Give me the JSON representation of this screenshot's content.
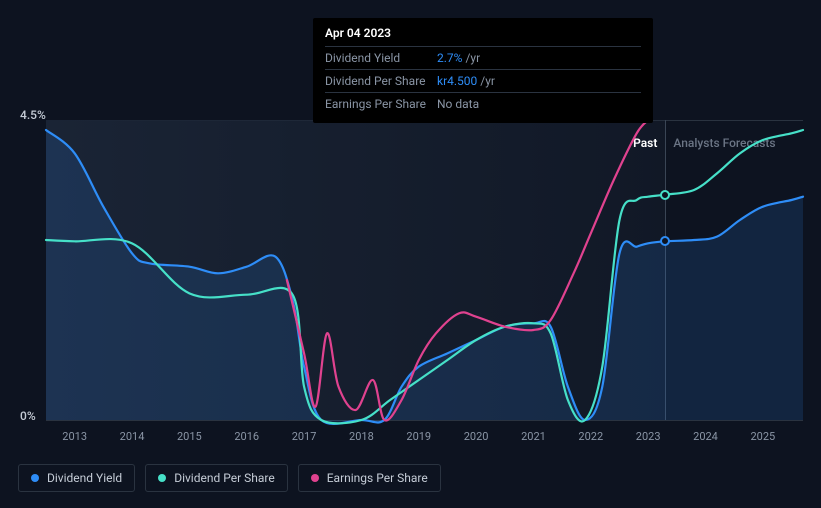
{
  "tooltip": {
    "date": "Apr 04 2023",
    "rows": [
      {
        "label": "Dividend Yield",
        "value": "2.7%",
        "unit": "/yr",
        "value_color": "#2e8df7"
      },
      {
        "label": "Dividend Per Share",
        "value": "kr4.500",
        "unit": "/yr",
        "value_color": "#2e8df7"
      },
      {
        "label": "Earnings Per Share",
        "value": "No data",
        "unit": "",
        "value_color": "#8a95a5"
      }
    ]
  },
  "chart": {
    "y_axis": {
      "max_label": "4.5%",
      "min_label": "0%",
      "max": 4.5,
      "min": 0
    },
    "x_years": [
      2013,
      2014,
      2015,
      2016,
      2017,
      2018,
      2019,
      2020,
      2021,
      2022,
      2023,
      2024,
      2025
    ],
    "x_range": [
      2012.5,
      2025.7
    ],
    "divider_x": 2023.3,
    "past_label": "Past",
    "forecast_label": "Analysts Forecasts",
    "background_color": "#0d1320",
    "grid_color": "#2a3340",
    "series": {
      "dividend_yield": {
        "color": "#2e8df7",
        "fill": "rgba(46,141,247,0.15)",
        "data": [
          [
            2012.5,
            4.35
          ],
          [
            2013,
            4.0
          ],
          [
            2013.5,
            3.2
          ],
          [
            2014,
            2.5
          ],
          [
            2014.3,
            2.35
          ],
          [
            2015,
            2.3
          ],
          [
            2015.5,
            2.2
          ],
          [
            2016,
            2.3
          ],
          [
            2016.5,
            2.45
          ],
          [
            2016.8,
            1.8
          ],
          [
            2017,
            0.8
          ],
          [
            2017.3,
            0.0
          ],
          [
            2018,
            0.0
          ],
          [
            2018.4,
            0.0
          ],
          [
            2018.7,
            0.5
          ],
          [
            2019,
            0.8
          ],
          [
            2019.5,
            1.0
          ],
          [
            2020,
            1.2
          ],
          [
            2020.5,
            1.4
          ],
          [
            2021,
            1.45
          ],
          [
            2021.3,
            1.4
          ],
          [
            2021.6,
            0.5
          ],
          [
            2021.9,
            0.0
          ],
          [
            2022.2,
            0.5
          ],
          [
            2022.5,
            2.5
          ],
          [
            2022.8,
            2.6
          ],
          [
            2023,
            2.65
          ],
          [
            2023.3,
            2.68
          ],
          [
            2023.8,
            2.7
          ],
          [
            2024.2,
            2.75
          ],
          [
            2024.6,
            3.0
          ],
          [
            2025,
            3.2
          ],
          [
            2025.5,
            3.3
          ],
          [
            2025.7,
            3.35
          ]
        ],
        "marker": [
          2023.3,
          2.68
        ]
      },
      "dividend_per_share": {
        "color": "#46e0c8",
        "data": [
          [
            2012.5,
            2.7
          ],
          [
            2013,
            2.68
          ],
          [
            2014,
            2.65
          ],
          [
            2015,
            1.9
          ],
          [
            2016,
            1.88
          ],
          [
            2016.8,
            1.88
          ],
          [
            2017,
            0.5
          ],
          [
            2017.3,
            0.0
          ],
          [
            2018,
            0.0
          ],
          [
            2018.5,
            0.3
          ],
          [
            2019,
            0.6
          ],
          [
            2019.5,
            0.9
          ],
          [
            2020,
            1.2
          ],
          [
            2020.5,
            1.4
          ],
          [
            2021,
            1.45
          ],
          [
            2021.3,
            1.3
          ],
          [
            2021.6,
            0.3
          ],
          [
            2021.9,
            0.0
          ],
          [
            2022.2,
            0.8
          ],
          [
            2022.5,
            3.0
          ],
          [
            2022.8,
            3.3
          ],
          [
            2023,
            3.35
          ],
          [
            2023.3,
            3.38
          ],
          [
            2023.8,
            3.45
          ],
          [
            2024.2,
            3.7
          ],
          [
            2024.6,
            4.0
          ],
          [
            2025,
            4.2
          ],
          [
            2025.5,
            4.3
          ],
          [
            2025.7,
            4.35
          ]
        ],
        "marker": [
          2023.3,
          3.38
        ]
      },
      "earnings_per_share": {
        "color": "#e0428f",
        "data": [
          [
            2016.7,
            2.1
          ],
          [
            2017,
            1.0
          ],
          [
            2017.2,
            0.2
          ],
          [
            2017.4,
            1.3
          ],
          [
            2017.6,
            0.5
          ],
          [
            2017.9,
            0.15
          ],
          [
            2018.2,
            0.6
          ],
          [
            2018.4,
            0.0
          ],
          [
            2018.7,
            0.3
          ],
          [
            2019,
            0.9
          ],
          [
            2019.3,
            1.3
          ],
          [
            2019.7,
            1.6
          ],
          [
            2020,
            1.55
          ],
          [
            2020.5,
            1.4
          ],
          [
            2021,
            1.35
          ],
          [
            2021.3,
            1.5
          ],
          [
            2021.7,
            2.2
          ],
          [
            2022,
            2.8
          ],
          [
            2022.4,
            3.6
          ],
          [
            2022.8,
            4.3
          ],
          [
            2023,
            4.5
          ]
        ]
      }
    }
  },
  "legend": [
    {
      "label": "Dividend Yield",
      "color": "#2e8df7"
    },
    {
      "label": "Dividend Per Share",
      "color": "#46e0c8"
    },
    {
      "label": "Earnings Per Share",
      "color": "#e0428f"
    }
  ]
}
